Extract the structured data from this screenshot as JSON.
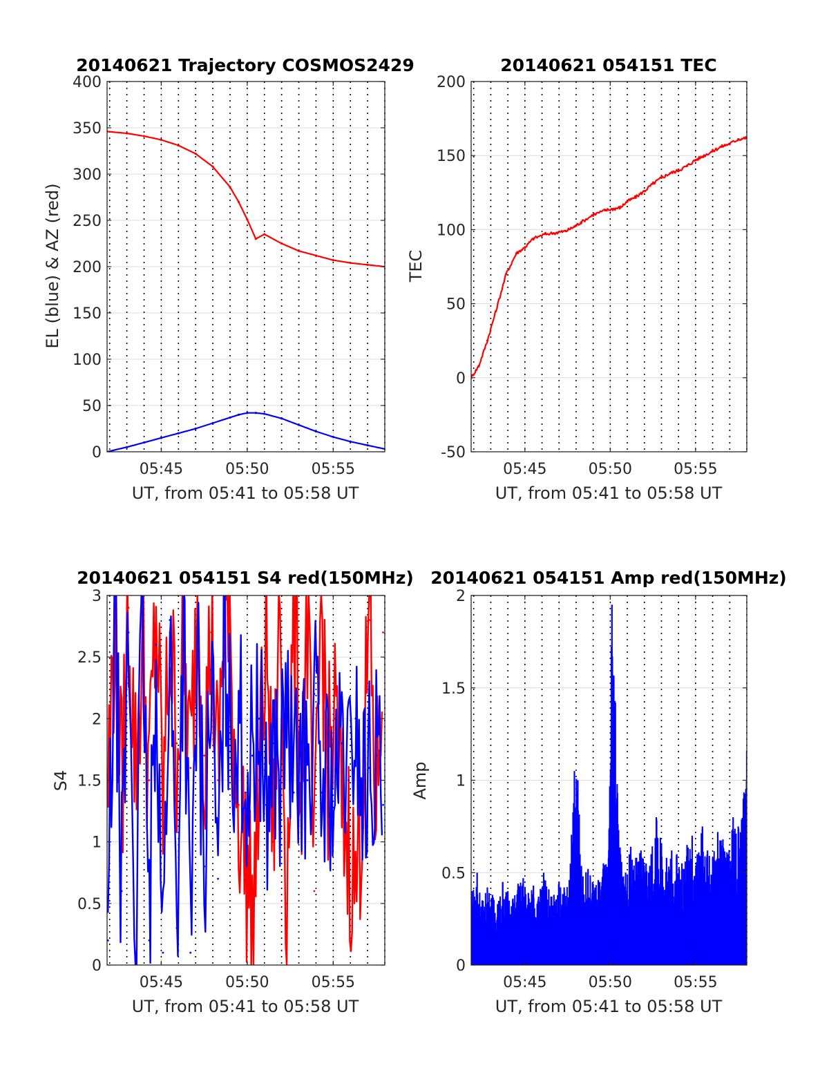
{
  "chart_data": [
    {
      "type": "line",
      "title": "20140621 Trajectory COSMOS2429",
      "xlabel": "UT, from 05:41 to 05:58 UT",
      "ylabel": "EL (blue) & AZ (red)",
      "x_unit": "minutes after 05:00 UT",
      "xlim": [
        41.85,
        58.0
      ],
      "ylim": [
        0,
        400
      ],
      "x_ticks": [
        {
          "v": 45,
          "label": "05:45"
        },
        {
          "v": 50,
          "label": "05:50"
        },
        {
          "v": 55,
          "label": "05:55"
        }
      ],
      "y_ticks": [
        0,
        50,
        100,
        150,
        200,
        250,
        300,
        350,
        400
      ],
      "grid": "on",
      "series": [
        {
          "color": "#ff0000",
          "x": [
            41.85,
            43,
            44,
            45,
            46,
            47,
            48,
            49,
            49.5,
            50,
            50.5,
            51,
            52,
            53,
            54,
            55,
            56,
            57,
            58
          ],
          "values": [
            346,
            344,
            341,
            337,
            331,
            322,
            308,
            286,
            270,
            251,
            230,
            235,
            225,
            217,
            212,
            207,
            204,
            202,
            200
          ]
        },
        {
          "color": "#0000ff",
          "x": [
            41.85,
            43,
            44,
            45,
            46,
            47,
            48,
            49,
            49.5,
            50,
            50.5,
            51,
            52,
            53,
            54,
            55,
            56,
            57,
            58
          ],
          "values": [
            0,
            5,
            10,
            15,
            20,
            25,
            31,
            37,
            40,
            42,
            42,
            41,
            36,
            29,
            22,
            16,
            11,
            7,
            3
          ]
        }
      ]
    },
    {
      "type": "line",
      "title": "20140621 054151 TEC",
      "xlabel": "UT, from 05:41 to 05:58 UT",
      "ylabel": "TEC",
      "x_unit": "minutes after 05:00 UT",
      "xlim": [
        41.85,
        58.0
      ],
      "ylim": [
        -50,
        200
      ],
      "x_ticks": [
        {
          "v": 45,
          "label": "05:45"
        },
        {
          "v": 50,
          "label": "05:50"
        },
        {
          "v": 55,
          "label": "05:55"
        }
      ],
      "y_ticks": [
        -50,
        0,
        50,
        100,
        150,
        200
      ],
      "grid": "on",
      "series": [
        {
          "color": "#ff0000",
          "x": [
            41.85,
            42.3,
            42.8,
            43.3,
            43.9,
            44.5,
            45.0,
            45.5,
            46.2,
            46.9,
            47.4,
            47.9,
            48.3,
            49.0,
            49.7,
            50.2,
            50.6,
            51.0,
            51.5,
            52.0,
            52.5,
            53.0,
            53.5,
            54.0,
            54.5,
            55.0,
            55.5,
            56.0,
            56.5,
            57.0,
            57.5,
            58.0
          ],
          "values": [
            0,
            8,
            25,
            45,
            70,
            84,
            88,
            94,
            97,
            98,
            99,
            102,
            105,
            110,
            113,
            114,
            115,
            119,
            122,
            126,
            131,
            135,
            138,
            140,
            143,
            147,
            150,
            153,
            156,
            158,
            161,
            162
          ]
        }
      ]
    },
    {
      "type": "line",
      "title": "20140621 054151 S4 red(150MHz)",
      "xlabel": "UT, from 05:41 to 05:58 UT",
      "ylabel": "S4",
      "x_unit": "minutes after 05:00 UT",
      "xlim": [
        41.85,
        58.0
      ],
      "ylim": [
        0,
        3
      ],
      "x_ticks": [
        {
          "v": 45,
          "label": "05:45"
        },
        {
          "v": 50,
          "label": "05:50"
        },
        {
          "v": 55,
          "label": "05:55"
        }
      ],
      "y_ticks": [
        0,
        0.5,
        1,
        1.5,
        2,
        2.5,
        3
      ],
      "grid": "on",
      "series": [
        {
          "color": "#ff0000",
          "x": [
            41.9,
            42.3,
            42.7,
            43.1,
            43.5,
            43.9,
            44.3,
            44.7,
            45.1,
            45.5,
            45.9,
            46.3,
            46.7,
            47.1,
            47.5,
            47.9,
            48.3,
            48.7,
            49.1,
            49.5,
            49.9,
            50.3,
            50.7,
            51.1,
            51.5,
            51.9,
            52.3,
            52.7,
            53.1,
            53.5,
            53.9,
            54.3,
            54.7,
            55.1,
            55.5,
            55.9,
            56.3,
            56.7,
            57.1,
            57.5,
            57.9
          ],
          "values": [
            1.5,
            2.8,
            1.4,
            2.9,
            1.6,
            2.6,
            1.5,
            2.9,
            1.3,
            2.7,
            1.8,
            2.5,
            1.6,
            3.0,
            1.7,
            2.7,
            1.5,
            3.0,
            2.2,
            1.3,
            0.9,
            0.3,
            1.5,
            2.8,
            1.0,
            2.9,
            0.5,
            3.0,
            1.4,
            2.8,
            0.6,
            3.0,
            1.6,
            2.0,
            1.3,
            1.0,
            0.6,
            1.4,
            2.8,
            1.2,
            2.7
          ]
        },
        {
          "color": "#0000ff",
          "x": [
            41.9,
            42.3,
            42.7,
            43.1,
            43.5,
            43.9,
            44.3,
            44.7,
            45.1,
            45.5,
            45.9,
            46.3,
            46.7,
            47.1,
            47.5,
            47.9,
            48.3,
            48.7,
            49.1,
            49.5,
            49.9,
            50.3,
            50.7,
            51.1,
            51.5,
            51.9,
            52.3,
            52.7,
            53.1,
            53.5,
            53.9,
            54.3,
            54.7,
            55.1,
            55.5,
            55.9,
            56.3,
            56.7,
            57.1,
            57.5,
            57.9
          ],
          "values": [
            0.2,
            2.9,
            0.6,
            2.7,
            0.1,
            3.0,
            0.2,
            2.6,
            0.1,
            2.8,
            0.3,
            2.9,
            0.1,
            2.5,
            0.8,
            2.4,
            0.7,
            2.6,
            1.6,
            2.2,
            1.4,
            1.7,
            2.0,
            1.3,
            1.8,
            1.5,
            2.1,
            1.4,
            1.7,
            1.5,
            2.2,
            1.4,
            1.6,
            1.3,
            1.8,
            1.5,
            2.0,
            1.4,
            1.6,
            1.7,
            1.3
          ]
        }
      ]
    },
    {
      "type": "bar",
      "title": "20140621 054151 Amp red(150MHz)",
      "xlabel": "UT, from 05:41 to 05:58 UT",
      "ylabel": "Amp",
      "x_unit": "minutes after 05:00 UT",
      "xlim": [
        41.85,
        58.0
      ],
      "ylim": [
        0,
        2
      ],
      "x_ticks": [
        {
          "v": 45,
          "label": "05:45"
        },
        {
          "v": 50,
          "label": "05:50"
        },
        {
          "v": 55,
          "label": "05:55"
        }
      ],
      "y_ticks": [
        0,
        0.5,
        1,
        1.5,
        2
      ],
      "grid": "on",
      "series": [
        {
          "color": "#0000ff",
          "x": [
            41.9,
            42.2,
            42.5,
            42.8,
            43.1,
            43.4,
            43.7,
            44.0,
            44.3,
            44.6,
            44.9,
            45.2,
            45.5,
            45.8,
            46.1,
            46.4,
            46.7,
            47.0,
            47.3,
            47.6,
            47.9,
            48.1,
            48.4,
            48.7,
            49.0,
            49.3,
            49.6,
            49.9,
            50.1,
            50.3,
            50.6,
            50.9,
            51.2,
            51.5,
            51.8,
            52.1,
            52.4,
            52.7,
            53.0,
            53.3,
            53.6,
            53.9,
            54.2,
            54.5,
            54.8,
            55.1,
            55.4,
            55.7,
            56.0,
            56.3,
            56.6,
            56.9,
            57.2,
            57.5,
            57.8,
            58.0
          ],
          "values": [
            0.4,
            0.5,
            0.35,
            0.42,
            0.38,
            0.33,
            0.45,
            0.4,
            0.36,
            0.44,
            0.47,
            0.39,
            0.43,
            0.37,
            0.5,
            0.41,
            0.38,
            0.45,
            0.42,
            0.46,
            1.05,
            1.0,
            0.48,
            0.52,
            0.44,
            0.46,
            0.55,
            0.58,
            1.95,
            1.42,
            0.6,
            0.5,
            0.64,
            0.58,
            0.62,
            0.55,
            0.6,
            0.8,
            0.66,
            0.58,
            0.62,
            0.6,
            0.55,
            0.65,
            0.7,
            0.6,
            0.75,
            0.62,
            0.58,
            0.72,
            0.68,
            0.6,
            0.8,
            0.75,
            0.9,
            1.16
          ]
        }
      ]
    }
  ]
}
